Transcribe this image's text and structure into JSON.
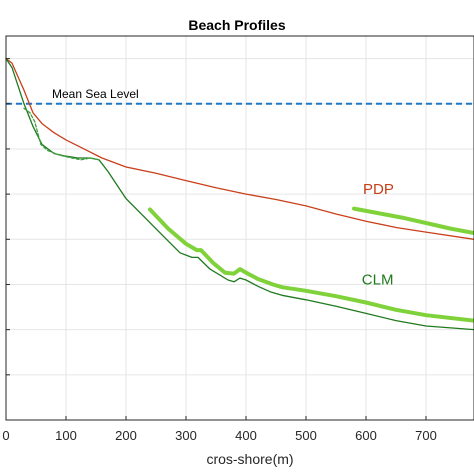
{
  "chart_data": {
    "type": "line",
    "title": "Beach Profiles",
    "xlabel": "cros-shore(m)",
    "ylabel": "",
    "xlim": [
      0,
      780
    ],
    "ylim": [
      -4.0,
      0.25
    ],
    "xticks": [
      0,
      100,
      200,
      300,
      400,
      500,
      600,
      700
    ],
    "yticks": [
      -4.0,
      -3.5,
      -3.0,
      -2.5,
      -2.0,
      -1.5,
      -1.0,
      -0.5,
      0.0
    ],
    "grid": true,
    "legend": "none",
    "colors": {
      "pdp": "#c8401a",
      "clm": "#1f7a1f",
      "highlight": "#7fd23a",
      "msl": "#1f77c4",
      "dashed_green": "#3f9f3f"
    },
    "mean_sea_level": {
      "label": "Mean Sea Level",
      "y": -0.5
    },
    "annotations": [
      {
        "text": "PDP",
        "x": 595,
        "y": -1.5,
        "color": "#c8401a"
      },
      {
        "text": "CLM",
        "x": 593,
        "y": -2.5,
        "color": "#1f7a1f"
      }
    ],
    "series": [
      {
        "name": "PDP",
        "x": [
          0,
          10,
          20,
          30,
          45,
          60,
          80,
          100,
          130,
          160,
          200,
          250,
          300,
          350,
          400,
          450,
          500,
          550,
          600,
          650,
          700,
          780
        ],
        "y": [
          0.0,
          -0.05,
          -0.2,
          -0.35,
          -0.6,
          -0.72,
          -0.82,
          -0.9,
          -1.0,
          -1.1,
          -1.2,
          -1.27,
          -1.35,
          -1.43,
          -1.5,
          -1.56,
          -1.63,
          -1.72,
          -1.8,
          -1.87,
          -1.92,
          -2.0
        ]
      },
      {
        "name": "CLM",
        "x": [
          0,
          10,
          20,
          30,
          45,
          60,
          80,
          100,
          120,
          140,
          155,
          170,
          200,
          230,
          260,
          290,
          310,
          320,
          340,
          370,
          380,
          390,
          400,
          420,
          440,
          460,
          500,
          550,
          600,
          650,
          700,
          780
        ],
        "y": [
          0.0,
          -0.1,
          -0.3,
          -0.5,
          -0.75,
          -0.95,
          -1.05,
          -1.08,
          -1.1,
          -1.1,
          -1.12,
          -1.25,
          -1.55,
          -1.75,
          -1.95,
          -2.15,
          -2.2,
          -2.2,
          -2.33,
          -2.45,
          -2.47,
          -2.43,
          -2.45,
          -2.52,
          -2.58,
          -2.62,
          -2.67,
          -2.74,
          -2.82,
          -2.9,
          -2.96,
          -3.0
        ]
      },
      {
        "name": "",
        "x": [
          240,
          270,
          300,
          318,
          325,
          345,
          365,
          380,
          390,
          400,
          420,
          445,
          460,
          500,
          550,
          600,
          650,
          700,
          780
        ],
        "y": [
          -1.67,
          -1.88,
          -2.05,
          -2.12,
          -2.12,
          -2.26,
          -2.37,
          -2.38,
          -2.33,
          -2.37,
          -2.44,
          -2.5,
          -2.53,
          -2.57,
          -2.63,
          -2.7,
          -2.78,
          -2.84,
          -2.9
        ]
      },
      {
        "name": "",
        "x": [
          580,
          620,
          660,
          700,
          740,
          780
        ],
        "y": [
          -1.66,
          -1.71,
          -1.76,
          -1.82,
          -1.88,
          -1.93
        ]
      },
      {
        "name": "",
        "x": [
          30,
          40,
          48,
          52,
          58,
          70,
          90,
          110,
          125,
          140,
          155
        ],
        "y": [
          -0.55,
          -0.6,
          -0.7,
          -0.8,
          -0.95,
          -1.02,
          -1.07,
          -1.1,
          -1.12,
          -1.1,
          -1.12
        ]
      }
    ]
  }
}
